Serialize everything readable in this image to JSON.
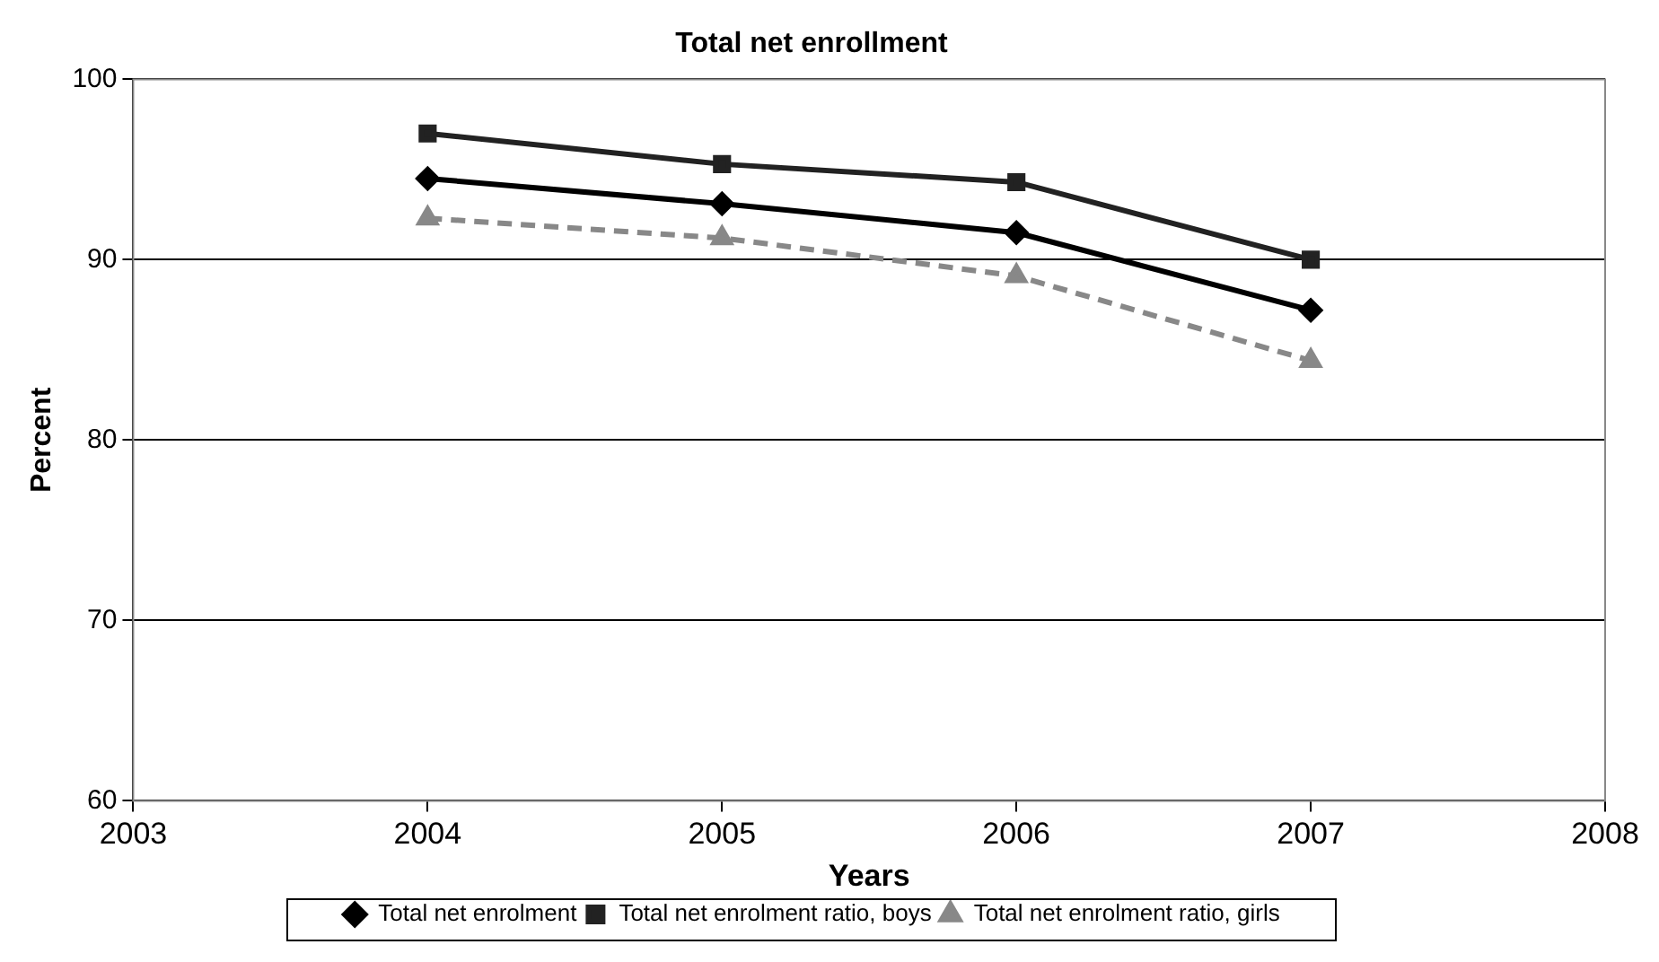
{
  "chart_data": {
    "type": "line",
    "title": "Total net enrollment",
    "xlabel": "Years",
    "ylabel": "Percent",
    "x": [
      2004,
      2005,
      2006,
      2007
    ],
    "xlim": [
      2003,
      2008
    ],
    "xticks": [
      2003,
      2004,
      2005,
      2006,
      2007,
      2008
    ],
    "ylim": [
      60,
      100
    ],
    "yticks": [
      60,
      70,
      80,
      90,
      100
    ],
    "grid": "y",
    "legend": "bottom",
    "series": [
      {
        "name": "Total net enrolment",
        "color": "#000000",
        "marker": "diamond",
        "line_style": "solid",
        "values": [
          94.5,
          93.1,
          91.5,
          87.2
        ]
      },
      {
        "name": "Total net enrolment ratio, boys",
        "color": "#222222",
        "marker": "square",
        "line_style": "solid",
        "values": [
          97,
          95.3,
          94.3,
          90
        ]
      },
      {
        "name": "Total net enrolment ratio, girls",
        "color": "#888888",
        "marker": "triangle",
        "line_style": "dashed",
        "values": [
          92.3,
          91.2,
          89.1,
          84.4
        ]
      }
    ]
  }
}
